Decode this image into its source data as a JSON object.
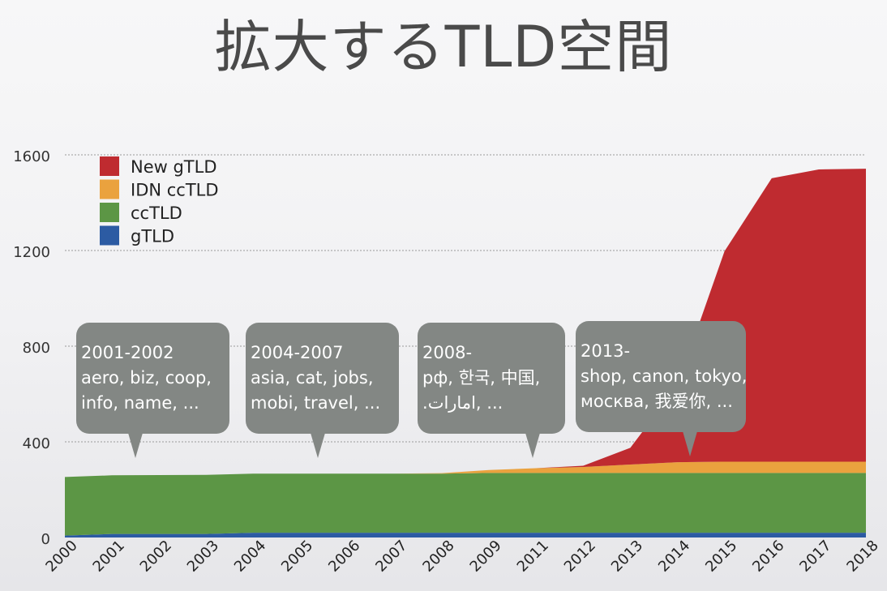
{
  "title": "拡大するTLD空間",
  "chart_data": {
    "type": "area",
    "stacked": true,
    "title": "拡大するTLD空間",
    "xlabel": "",
    "ylabel": "",
    "ylim": [
      0,
      1600
    ],
    "yticks": [
      0,
      400,
      800,
      1200,
      1600
    ],
    "grid": true,
    "legend_position": "top-left",
    "categories": [
      "2000",
      "2001",
      "2002",
      "2003",
      "2004",
      "2005",
      "2006",
      "2007",
      "2008",
      "2009",
      "2011",
      "2012",
      "2013",
      "2014",
      "2015",
      "2016",
      "2017",
      "2018"
    ],
    "series": [
      {
        "name": "gTLD",
        "color": "#2c5ba3",
        "values": [
          8,
          15,
          15,
          15,
          20,
          20,
          20,
          20,
          20,
          20,
          20,
          20,
          20,
          20,
          20,
          20,
          20,
          20
        ]
      },
      {
        "name": "ccTLD",
        "color": "#5c9645",
        "values": [
          245,
          245,
          246,
          247,
          247,
          247,
          247,
          247,
          247,
          250,
          250,
          250,
          250,
          250,
          250,
          250,
          250,
          250
        ]
      },
      {
        "name": "IDN ccTLD",
        "color": "#eaa23e",
        "values": [
          0,
          0,
          0,
          0,
          0,
          0,
          0,
          0,
          2,
          12,
          20,
          25,
          35,
          45,
          47,
          47,
          47,
          47
        ]
      },
      {
        "name": "New gTLD",
        "color": "#bf2b30",
        "values": [
          0,
          0,
          0,
          0,
          0,
          0,
          0,
          0,
          0,
          0,
          0,
          5,
          70,
          320,
          880,
          1185,
          1222,
          1225
        ]
      }
    ],
    "legend_order": [
      "New gTLD",
      "IDN ccTLD",
      "ccTLD",
      "gTLD"
    ],
    "annotations": [
      {
        "id": "c1",
        "lines": [
          "2001-2002",
          "aero, biz, coop,",
          "info, name, ..."
        ]
      },
      {
        "id": "c2",
        "lines": [
          "2004-2007",
          "asia, cat, jobs,",
          "mobi, travel, ..."
        ]
      },
      {
        "id": "c3",
        "lines": [
          "2008-",
          "рф, 한국, 中国,",
          ".امارات, ..."
        ]
      },
      {
        "id": "c4",
        "lines": [
          "2013-",
          "shop, canon, tokyo,",
          "москва, 我爱你, ..."
        ]
      }
    ]
  }
}
